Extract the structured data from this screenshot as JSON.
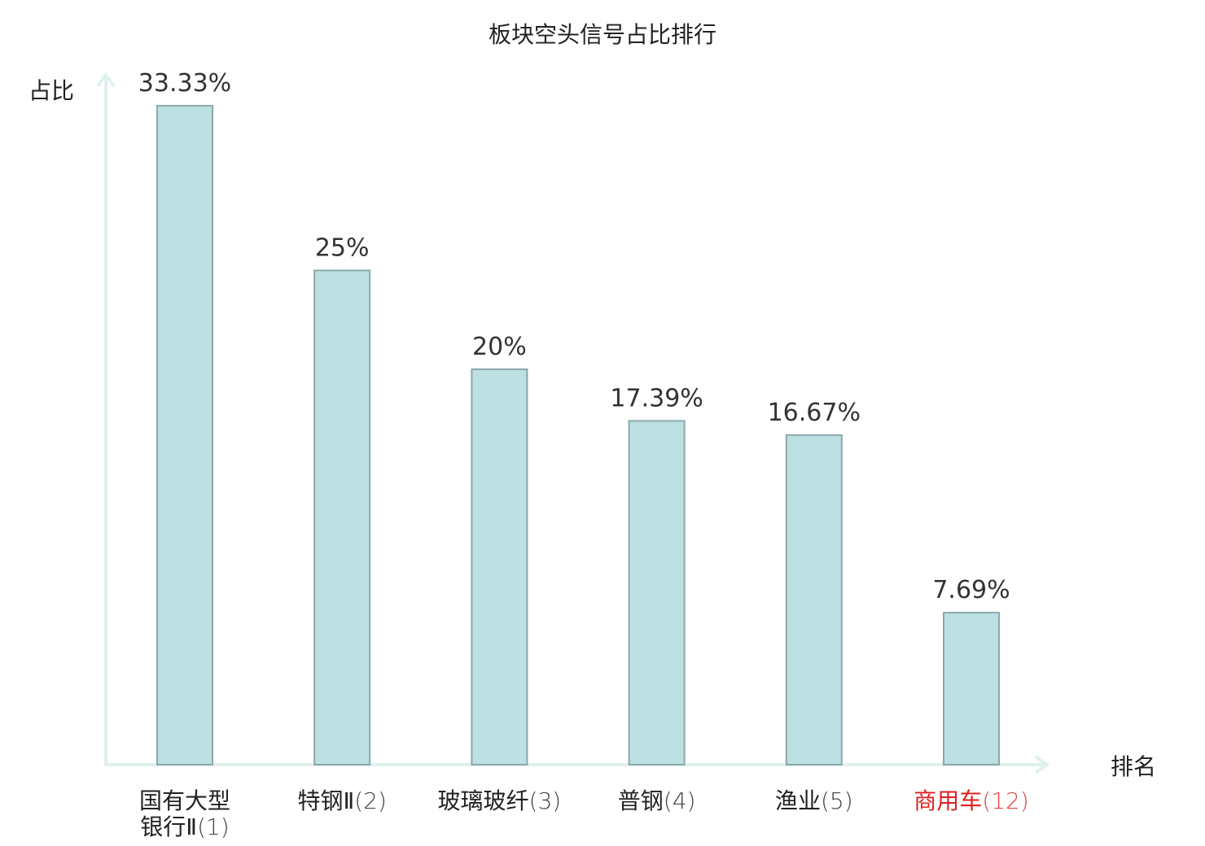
{
  "colors": {
    "bar_fill": "#bde0e3",
    "bar_stroke": "#8aa9ac",
    "axis": "#dff1ef",
    "text": "#222222",
    "value_label": "#333333",
    "highlight": "#e02020"
  },
  "chart_data": {
    "type": "bar",
    "title": "板块空头信号占比排行",
    "ylabel": "占比",
    "xlabel": "排名",
    "ylim": [
      0,
      35
    ],
    "grid": false,
    "categories": [
      {
        "name_lines": [
          "国有大型",
          "银行Ⅱ"
        ],
        "rank": "(1)",
        "highlight": false
      },
      {
        "name_lines": [
          "特钢Ⅱ"
        ],
        "rank": "(2)",
        "highlight": false
      },
      {
        "name_lines": [
          "玻璃玻纤"
        ],
        "rank": "(3)",
        "highlight": false
      },
      {
        "name_lines": [
          "普钢"
        ],
        "rank": "(4)",
        "highlight": false
      },
      {
        "name_lines": [
          "渔业"
        ],
        "rank": "(5)",
        "highlight": false
      },
      {
        "name_lines": [
          "商用车"
        ],
        "rank": "(12)",
        "highlight": true
      }
    ],
    "values": [
      33.33,
      25,
      20,
      17.39,
      16.67,
      7.69
    ],
    "value_labels": [
      "33.33%",
      "25%",
      "20%",
      "17.39%",
      "16.67%",
      "7.69%"
    ]
  }
}
